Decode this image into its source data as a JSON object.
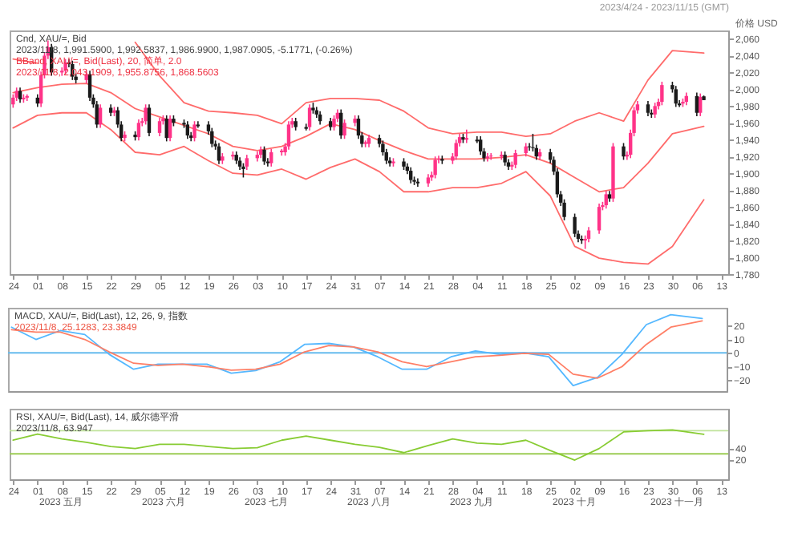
{
  "chart_data": [
    {
      "type": "candlestick",
      "title": "Cnd, XAU/=, Bid",
      "subtitle": "2023/11/8, 1,991.5900, 1,992.5837, 1,986.9900, 1,987.0905, -5.1771, (-0.26%)",
      "xlabel": "2023/4/24 - 2023/11/15 (GMT)",
      "ylabel": "价格 USD",
      "xticks": [
        {
          "value": "2023-04-24",
          "label": "24"
        },
        {
          "value": "2023-05-01",
          "label": "01"
        },
        {
          "value": "2023-05-08",
          "label": "08"
        },
        {
          "value": "2023-05-15",
          "label": "15"
        },
        {
          "value": "2023-05-22",
          "label": "22"
        },
        {
          "value": "2023-05-29",
          "label": "29"
        },
        {
          "value": "2023-06-05",
          "label": "05"
        },
        {
          "value": "2023-06-12",
          "label": "12"
        },
        {
          "value": "2023-06-19",
          "label": "19"
        },
        {
          "value": "2023-06-26",
          "label": "26"
        },
        {
          "value": "2023-07-03",
          "label": "03"
        },
        {
          "value": "2023-07-10",
          "label": "10"
        },
        {
          "value": "2023-07-17",
          "label": "17"
        },
        {
          "value": "2023-07-24",
          "label": "24"
        },
        {
          "value": "2023-07-31",
          "label": "31"
        },
        {
          "value": "2023-08-07",
          "label": "07"
        },
        {
          "value": "2023-08-14",
          "label": "14"
        },
        {
          "value": "2023-08-21",
          "label": "21"
        },
        {
          "value": "2023-08-28",
          "label": "28"
        },
        {
          "value": "2023-09-04",
          "label": "04"
        },
        {
          "value": "2023-09-11",
          "label": "11"
        },
        {
          "value": "2023-09-18",
          "label": "18"
        },
        {
          "value": "2023-09-25",
          "label": "25"
        },
        {
          "value": "2023-10-02",
          "label": "02"
        },
        {
          "value": "2023-10-09",
          "label": "09"
        },
        {
          "value": "2023-10-16",
          "label": "16"
        },
        {
          "value": "2023-10-23",
          "label": "23"
        },
        {
          "value": "2023-10-30",
          "label": "30"
        },
        {
          "value": "2023-11-06",
          "label": "06"
        },
        {
          "value": "2023-11-13",
          "label": "13"
        }
      ],
      "annotations": [
        "BBand, XAU/=, Bid(Last), 20, 简单, 2.0",
        "2023/11/8, 2,043.1909, 1,955.8756, 1,868.5603"
      ],
      "x": [
        "2023-04-24",
        "2023-04-25",
        "2023-04-26",
        "2023-04-27",
        "2023-04-28",
        "2023-05-01",
        "2023-05-02",
        "2023-05-03",
        "2023-05-04",
        "2023-05-05",
        "2023-05-08",
        "2023-05-09",
        "2023-05-10",
        "2023-05-11",
        "2023-05-12",
        "2023-05-15",
        "2023-05-16",
        "2023-05-17",
        "2023-05-18",
        "2023-05-19",
        "2023-05-22",
        "2023-05-23",
        "2023-05-24",
        "2023-05-25",
        "2023-05-26",
        "2023-05-29",
        "2023-05-30",
        "2023-05-31",
        "2023-06-01",
        "2023-06-02",
        "2023-06-05",
        "2023-06-06",
        "2023-06-07",
        "2023-06-08",
        "2023-06-09",
        "2023-06-12",
        "2023-06-13",
        "2023-06-14",
        "2023-06-15",
        "2023-06-16",
        "2023-06-19",
        "2023-06-20",
        "2023-06-21",
        "2023-06-22",
        "2023-06-23",
        "2023-06-26",
        "2023-06-27",
        "2023-06-28",
        "2023-06-29",
        "2023-06-30",
        "2023-07-03",
        "2023-07-04",
        "2023-07-05",
        "2023-07-06",
        "2023-07-07",
        "2023-07-10",
        "2023-07-11",
        "2023-07-12",
        "2023-07-13",
        "2023-07-14",
        "2023-07-17",
        "2023-07-18",
        "2023-07-19",
        "2023-07-20",
        "2023-07-21",
        "2023-07-24",
        "2023-07-25",
        "2023-07-26",
        "2023-07-27",
        "2023-07-28",
        "2023-07-31",
        "2023-08-01",
        "2023-08-02",
        "2023-08-03",
        "2023-08-04",
        "2023-08-07",
        "2023-08-08",
        "2023-08-09",
        "2023-08-10",
        "2023-08-11",
        "2023-08-14",
        "2023-08-15",
        "2023-08-16",
        "2023-08-17",
        "2023-08-18",
        "2023-08-21",
        "2023-08-22",
        "2023-08-23",
        "2023-08-24",
        "2023-08-25",
        "2023-08-28",
        "2023-08-29",
        "2023-08-30",
        "2023-08-31",
        "2023-09-01",
        "2023-09-04",
        "2023-09-05",
        "2023-09-06",
        "2023-09-07",
        "2023-09-08",
        "2023-09-11",
        "2023-09-12",
        "2023-09-13",
        "2023-09-14",
        "2023-09-15",
        "2023-09-18",
        "2023-09-19",
        "2023-09-20",
        "2023-09-21",
        "2023-09-22",
        "2023-09-25",
        "2023-09-26",
        "2023-09-27",
        "2023-09-28",
        "2023-09-29",
        "2023-10-02",
        "2023-10-03",
        "2023-10-04",
        "2023-10-05",
        "2023-10-06",
        "2023-10-09",
        "2023-10-10",
        "2023-10-11",
        "2023-10-12",
        "2023-10-13",
        "2023-10-16",
        "2023-10-17",
        "2023-10-18",
        "2023-10-19",
        "2023-10-20",
        "2023-10-23",
        "2023-10-24",
        "2023-10-25",
        "2023-10-26",
        "2023-10-27",
        "2023-10-30",
        "2023-10-31",
        "2023-11-01",
        "2023-11-02",
        "2023-11-03",
        "2023-11-06",
        "2023-11-07",
        "2023-11-08"
      ],
      "ohlc": [
        [
          1982,
          1994,
          1978,
          1990
        ],
        [
          1990,
          2002,
          1986,
          1998
        ],
        [
          1998,
          2002,
          1984,
          1988
        ],
        [
          1988,
          1994,
          1984,
          1990
        ],
        [
          1990,
          1994,
          1986,
          1992
        ],
        [
          1990,
          1994,
          1979,
          1983
        ],
        [
          1983,
          2021,
          1979,
          2017
        ],
        [
          2017,
          2044,
          2013,
          2040
        ],
        [
          2040,
          2058,
          2036,
          2050
        ],
        [
          2050,
          2054,
          2016,
          2020
        ],
        [
          2020,
          2026,
          2016,
          2022
        ],
        [
          2022,
          2036,
          2018,
          2032
        ],
        [
          2032,
          2036,
          2026,
          2030
        ],
        [
          2030,
          2034,
          2011,
          2015
        ],
        [
          2015,
          2019,
          2007,
          2011
        ],
        [
          2011,
          2022,
          2007,
          2018
        ],
        [
          2018,
          2022,
          1986,
          1990
        ],
        [
          1990,
          1994,
          1978,
          1982
        ],
        [
          1982,
          1986,
          1954,
          1958
        ],
        [
          1958,
          1982,
          1954,
          1978
        ],
        [
          1978,
          1982,
          1968,
          1972
        ],
        [
          1972,
          1979,
          1968,
          1975
        ],
        [
          1975,
          1979,
          1954,
          1958
        ],
        [
          1958,
          1962,
          1938,
          1942
        ],
        [
          1942,
          1950,
          1938,
          1946
        ],
        [
          1946,
          1950,
          1939,
          1943
        ],
        [
          1943,
          1964,
          1939,
          1960
        ],
        [
          1960,
          1966,
          1956,
          1962
        ],
        [
          1962,
          1982,
          1958,
          1978
        ],
        [
          1978,
          1982,
          1944,
          1948
        ],
        [
          1948,
          1966,
          1944,
          1962
        ],
        [
          1962,
          1969,
          1958,
          1965
        ],
        [
          1965,
          1969,
          1938,
          1942
        ],
        [
          1942,
          1969,
          1938,
          1965
        ],
        [
          1965,
          1969,
          1956,
          1960
        ],
        [
          1960,
          1964,
          1954,
          1958
        ],
        [
          1958,
          1962,
          1941,
          1945
        ],
        [
          1945,
          1949,
          1938,
          1942
        ],
        [
          1942,
          1962,
          1938,
          1958
        ],
        [
          1958,
          1962,
          1954,
          1956
        ],
        [
          1958,
          1962,
          1946,
          1950
        ],
        [
          1950,
          1954,
          1931,
          1935
        ],
        [
          1935,
          1939,
          1928,
          1932
        ],
        [
          1932,
          1936,
          1911,
          1915
        ],
        [
          1915,
          1924,
          1911,
          1920
        ],
        [
          1920,
          1926,
          1916,
          1922
        ],
        [
          1922,
          1926,
          1911,
          1915
        ],
        [
          1915,
          1919,
          1904,
          1908
        ],
        [
          1908,
          1912,
          1895,
          1905
        ],
        [
          1908,
          1922,
          1904,
          1918
        ],
        [
          1918,
          1926,
          1914,
          1922
        ],
        [
          1922,
          1932,
          1918,
          1928
        ],
        [
          1928,
          1932,
          1910,
          1914
        ],
        [
          1914,
          1918,
          1908,
          1912
        ],
        [
          1912,
          1929,
          1908,
          1925
        ],
        [
          1925,
          1929,
          1921,
          1927
        ],
        [
          1925,
          1936,
          1921,
          1932
        ],
        [
          1932,
          1962,
          1928,
          1958
        ],
        [
          1958,
          1966,
          1954,
          1962
        ],
        [
          1962,
          1966,
          1951,
          1955
        ],
        [
          1955,
          1959,
          1951,
          1953
        ],
        [
          1955,
          1982,
          1951,
          1978
        ],
        [
          1978,
          1984,
          1971,
          1975
        ],
        [
          1975,
          1979,
          1966,
          1970
        ],
        [
          1970,
          1974,
          1958,
          1962
        ],
        [
          1962,
          1966,
          1951,
          1955
        ],
        [
          1955,
          1969,
          1951,
          1965
        ],
        [
          1965,
          1976,
          1961,
          1972
        ],
        [
          1972,
          1976,
          1941,
          1945
        ],
        [
          1945,
          1964,
          1941,
          1960
        ],
        [
          1960,
          1969,
          1956,
          1965
        ],
        [
          1965,
          1969,
          1941,
          1945
        ],
        [
          1945,
          1949,
          1931,
          1935
        ],
        [
          1935,
          1939,
          1931,
          1937
        ],
        [
          1935,
          1946,
          1931,
          1942
        ],
        [
          1942,
          1946,
          1931,
          1935
        ],
        [
          1935,
          1939,
          1921,
          1925
        ],
        [
          1925,
          1929,
          1911,
          1915
        ],
        [
          1915,
          1919,
          1908,
          1912
        ],
        [
          1912,
          1918,
          1908,
          1914
        ],
        [
          1914,
          1918,
          1904,
          1908
        ],
        [
          1908,
          1912,
          1899,
          1903
        ],
        [
          1903,
          1907,
          1888,
          1892
        ],
        [
          1892,
          1896,
          1886,
          1890
        ],
        [
          1890,
          1894,
          1884,
          1888
        ],
        [
          1888,
          1899,
          1884,
          1895
        ],
        [
          1895,
          1902,
          1891,
          1898
        ],
        [
          1898,
          1920,
          1894,
          1916
        ],
        [
          1916,
          1921,
          1912,
          1917
        ],
        [
          1917,
          1921,
          1911,
          1915
        ],
        [
          1915,
          1924,
          1911,
          1920
        ],
        [
          1920,
          1940,
          1916,
          1936
        ],
        [
          1936,
          1947,
          1932,
          1943
        ],
        [
          1943,
          1947,
          1936,
          1940
        ],
        [
          1940,
          1952,
          1936,
          1942
        ],
        [
          1940,
          1944,
          1936,
          1938
        ],
        [
          1940,
          1944,
          1922,
          1926
        ],
        [
          1926,
          1930,
          1914,
          1918
        ],
        [
          1918,
          1924,
          1914,
          1920
        ],
        [
          1920,
          1924,
          1916,
          1921
        ],
        [
          1920,
          1926,
          1916,
          1922
        ],
        [
          1922,
          1926,
          1909,
          1913
        ],
        [
          1913,
          1917,
          1904,
          1908
        ],
        [
          1908,
          1914,
          1904,
          1910
        ],
        [
          1910,
          1928,
          1906,
          1924
        ],
        [
          1924,
          1936,
          1920,
          1932
        ],
        [
          1932,
          1936,
          1927,
          1931
        ],
        [
          1931,
          1947,
          1926,
          1930
        ],
        [
          1930,
          1934,
          1916,
          1920
        ],
        [
          1920,
          1929,
          1916,
          1925
        ],
        [
          1925,
          1929,
          1912,
          1916
        ],
        [
          1916,
          1920,
          1898,
          1902
        ],
        [
          1902,
          1906,
          1871,
          1875
        ],
        [
          1875,
          1879,
          1861,
          1865
        ],
        [
          1865,
          1869,
          1844,
          1848
        ],
        [
          1848,
          1852,
          1824,
          1828
        ],
        [
          1828,
          1832,
          1818,
          1822
        ],
        [
          1822,
          1826,
          1816,
          1820
        ],
        [
          1820,
          1826,
          1810,
          1822
        ],
        [
          1822,
          1836,
          1818,
          1832
        ],
        [
          1832,
          1864,
          1828,
          1860
        ],
        [
          1860,
          1866,
          1856,
          1862
        ],
        [
          1862,
          1879,
          1858,
          1875
        ],
        [
          1875,
          1879,
          1866,
          1870
        ],
        [
          1870,
          1936,
          1866,
          1932
        ],
        [
          1932,
          1936,
          1916,
          1920
        ],
        [
          1920,
          1926,
          1916,
          1922
        ],
        [
          1922,
          1952,
          1918,
          1948
        ],
        [
          1948,
          1979,
          1944,
          1975
        ],
        [
          1975,
          1986,
          1971,
          1982
        ],
        [
          1982,
          1986,
          1968,
          1972
        ],
        [
          1972,
          1976,
          1966,
          1970
        ],
        [
          1970,
          1984,
          1966,
          1980
        ],
        [
          1980,
          1989,
          1976,
          1985
        ],
        [
          1985,
          2009,
          1981,
          2005
        ],
        [
          2005,
          2009,
          1996,
          2000
        ],
        [
          2000,
          2004,
          1979,
          1983
        ],
        [
          1983,
          1987,
          1979,
          1981
        ],
        [
          1983,
          1989,
          1979,
          1985
        ],
        [
          1985,
          1996,
          1981,
          1992
        ],
        [
          1992,
          1996,
          1968,
          1972
        ],
        [
          1972,
          1995,
          1968,
          1991
        ],
        [
          1991.59,
          1992.5837,
          1986.99,
          1987.0905
        ]
      ],
      "colors": [
        "#ff3388",
        "#ff3388",
        "#1a1a1a",
        "#ff3388",
        "#ff3388",
        "#1a1a1a",
        "#ff3388",
        "#ff3388",
        "#ff3388",
        "#1a1a1a",
        "#ff3388",
        "#ff3388",
        "#1a1a1a",
        "#1a1a1a",
        "#1a1a1a",
        "#ff3388",
        "#1a1a1a",
        "#1a1a1a",
        "#1a1a1a",
        "#ff3388",
        "#1a1a1a",
        "#ff3388",
        "#1a1a1a",
        "#1a1a1a",
        "#ff3388",
        "#1a1a1a",
        "#ff3388",
        "#ff3388",
        "#ff3388",
        "#1a1a1a",
        "#ff3388",
        "#ff3388",
        "#1a1a1a",
        "#ff3388",
        "#1a1a1a",
        "#1a1a1a",
        "#1a1a1a",
        "#1a1a1a",
        "#ff3388",
        "#1a1a1a",
        "#1a1a1a",
        "#1a1a1a",
        "#1a1a1a",
        "#1a1a1a",
        "#ff3388",
        "#ff3388",
        "#1a1a1a",
        "#1a1a1a",
        "#1a1a1a",
        "#ff3388",
        "#ff3388",
        "#ff3388",
        "#1a1a1a",
        "#1a1a1a",
        "#ff3388",
        "#ff3388",
        "#ff3388",
        "#ff3388",
        "#ff3388",
        "#1a1a1a",
        "#1a1a1a",
        "#ff3388",
        "#1a1a1a",
        "#1a1a1a",
        "#1a1a1a",
        "#1a1a1a",
        "#ff3388",
        "#ff3388",
        "#1a1a1a",
        "#ff3388",
        "#ff3388",
        "#1a1a1a",
        "#1a1a1a",
        "#ff3388",
        "#ff3388",
        "#1a1a1a",
        "#1a1a1a",
        "#1a1a1a",
        "#1a1a1a",
        "#ff3388",
        "#1a1a1a",
        "#1a1a1a",
        "#1a1a1a",
        "#1a1a1a",
        "#1a1a1a",
        "#ff3388",
        "#ff3388",
        "#ff3388",
        "#ff3388",
        "#1a1a1a",
        "#ff3388",
        "#ff3388",
        "#ff3388",
        "#1a1a1a",
        "#ff3388",
        "#1a1a1a",
        "#1a1a1a",
        "#1a1a1a",
        "#ff3388",
        "#ff3388",
        "#ff3388",
        "#1a1a1a",
        "#1a1a1a",
        "#ff3388",
        "#ff3388",
        "#ff3388",
        "#1a1a1a",
        "#1a1a1a",
        "#1a1a1a",
        "#ff3388",
        "#1a1a1a",
        "#1a1a1a",
        "#1a1a1a",
        "#1a1a1a",
        "#1a1a1a",
        "#1a1a1a",
        "#1a1a1a",
        "#1a1a1a",
        "#ff3388",
        "#ff3388",
        "#ff3388",
        "#ff3388",
        "#ff3388",
        "#1a1a1a",
        "#ff3388",
        "#1a1a1a",
        "#ff3388",
        "#ff3388",
        "#ff3388",
        "#ff3388",
        "#1a1a1a",
        "#1a1a1a",
        "#ff3388",
        "#ff3388",
        "#ff3388",
        "#1a1a1a",
        "#1a1a1a",
        "#1a1a1a",
        "#ff3388",
        "#ff3388",
        "#1a1a1a",
        "#ff3388",
        "#1a1a1a"
      ],
      "series": [
        {
          "type": "line",
          "color": "#ff6b6b",
          "x": [
            "2023-04-24",
            "2023-05-01",
            "2023-05-08",
            "2023-05-15",
            "2023-05-22",
            "2023-05-29",
            "2023-06-05",
            "2023-06-12",
            "2023-06-19",
            "2023-06-26",
            "2023-07-03",
            "2023-07-10",
            "2023-07-17",
            "2023-07-24",
            "2023-07-31",
            "2023-08-07",
            "2023-08-14",
            "2023-08-21",
            "2023-08-28",
            "2023-09-04",
            "2023-09-11",
            "2023-09-18",
            "2023-09-25",
            "2023-10-02",
            "2023-10-09",
            "2023-10-16",
            "2023-10-23",
            "2023-10-30",
            "2023-11-08"
          ],
          "values": [
            2036,
            2031,
            null,
            null,
            null,
            2056,
            2016,
            1984,
            1974,
            1972,
            1969,
            1959,
            1984,
            1989,
            1989,
            1987,
            1974,
            1954,
            1947,
            1949,
            1949,
            1944,
            1947,
            1962,
            1972,
            1962,
            2011,
            2046,
            2043.1909
          ]
        },
        {
          "type": "line",
          "color": "#ff6b6b",
          "x": [
            "2023-04-24",
            "2023-05-01",
            "2023-05-08",
            "2023-05-15",
            "2023-05-22",
            "2023-05-29",
            "2023-06-05",
            "2023-06-12",
            "2023-06-19",
            "2023-06-26",
            "2023-07-03",
            "2023-07-10",
            "2023-07-17",
            "2023-07-24",
            "2023-07-31",
            "2023-08-07",
            "2023-08-14",
            "2023-08-21",
            "2023-08-28",
            "2023-09-04",
            "2023-09-11",
            "2023-09-18",
            "2023-09-25",
            "2023-10-02",
            "2023-10-09",
            "2023-10-16",
            "2023-10-23",
            "2023-10-30",
            "2023-11-08"
          ],
          "values": [
            1996,
            2002,
            2006,
            2007,
            1996,
            1977,
            1967,
            1957,
            1947,
            1932,
            1927,
            1932,
            1944,
            1959,
            1952,
            1939,
            1927,
            1917,
            1917,
            1917,
            1919,
            1922,
            1912,
            1895,
            1878,
            1883,
            1912,
            1947,
            1955.8756
          ]
        },
        {
          "type": "line",
          "color": "#ff6b6b",
          "x": [
            "2023-04-24",
            "2023-05-01",
            "2023-05-08",
            "2023-05-15",
            "2023-05-22",
            "2023-05-29",
            "2023-06-05",
            "2023-06-12",
            "2023-06-19",
            "2023-06-26",
            "2023-07-03",
            "2023-07-10",
            "2023-07-17",
            "2023-07-24",
            "2023-07-31",
            "2023-08-07",
            "2023-08-14",
            "2023-08-21",
            "2023-08-28",
            "2023-09-04",
            "2023-09-11",
            "2023-09-18",
            "2023-09-25",
            "2023-10-02",
            "2023-10-09",
            "2023-10-16",
            "2023-10-23",
            "2023-10-30",
            "2023-11-08"
          ],
          "values": [
            1954,
            1969,
            1972,
            1972,
            1952,
            1925,
            1922,
            1932,
            1915,
            1900,
            1898,
            1905,
            1893,
            1907,
            1917,
            1902,
            1878,
            1878,
            1883,
            1883,
            1888,
            1902,
            1873,
            1813,
            1799,
            1794,
            1792,
            1813,
            1868.5603
          ]
        }
      ],
      "xlim": [
        "2023-04-23",
        "2023-11-15"
      ],
      "ylim": [
        1780,
        2070
      ],
      "yticks": [
        {
          "value": 1780,
          "label": "1,780"
        },
        {
          "value": 1800,
          "label": "1,800"
        },
        {
          "value": 1820,
          "label": "1,820"
        },
        {
          "value": 1840,
          "label": "1,840"
        },
        {
          "value": 1860,
          "label": "1,860"
        },
        {
          "value": 1880,
          "label": "1,880"
        },
        {
          "value": 1900,
          "label": "1,900"
        },
        {
          "value": 1920,
          "label": "1,920"
        },
        {
          "value": 1940,
          "label": "1,940"
        },
        {
          "value": 1960,
          "label": "1,960"
        },
        {
          "value": 1980,
          "label": "1,980"
        },
        {
          "value": 2000,
          "label": "2,000"
        },
        {
          "value": 2020,
          "label": "2,020"
        },
        {
          "value": 2040,
          "label": "2,040"
        },
        {
          "value": 2060,
          "label": "2,060"
        }
      ]
    },
    {
      "type": "line",
      "tick_labels": "y",
      "title": "MACD, XAU/=, Bid(Last), 12, 26, 9, 指数",
      "subtitle": "2023/11/8, 25.1283, 23.3849",
      "x": [
        "2023-04-24",
        "2023-05-01",
        "2023-05-08",
        "2023-05-15",
        "2023-05-22",
        "2023-05-29",
        "2023-06-05",
        "2023-06-12",
        "2023-06-19",
        "2023-06-26",
        "2023-07-03",
        "2023-07-10",
        "2023-07-17",
        "2023-07-24",
        "2023-07-31",
        "2023-08-07",
        "2023-08-14",
        "2023-08-21",
        "2023-08-28",
        "2023-09-04",
        "2023-09-11",
        "2023-09-18",
        "2023-09-25",
        "2023-10-02",
        "2023-10-09",
        "2023-10-16",
        "2023-10-23",
        "2023-10-30",
        "2023-11-08"
      ],
      "series": [
        {
          "color": "#55b8ff",
          "values": [
            18.8,
            9.8,
            16.3,
            13.4,
            -1.1,
            -12,
            -8.3,
            -8.3,
            -8.3,
            -14.9,
            -13,
            -6.5,
            6.2,
            6.9,
            4.3,
            -2.9,
            -12,
            -12,
            -2.9,
            1.4,
            -1.1,
            0,
            -2.9,
            -24,
            -18,
            -1.1,
            20.7,
            27.9,
            25.1283
          ]
        },
        {
          "color": "#ff7f66",
          "values": [
            17,
            15.2,
            15.2,
            9.8,
            0.7,
            -7.6,
            -9.1,
            -8.3,
            -10.1,
            -12.7,
            -12,
            -8.3,
            0.7,
            5.4,
            4.3,
            0.7,
            -6.5,
            -10.1,
            -6.5,
            -2.9,
            -1.8,
            -0.4,
            -1.1,
            -15.6,
            -18.5,
            -10.1,
            6.2,
            18.8,
            23.3849
          ]
        }
      ],
      "ref_lines": [
        {
          "axis": "y",
          "value": 0,
          "color": "#66bbee"
        }
      ],
      "xlim": [
        "2023-04-23",
        "2023-11-15"
      ],
      "ylim": [
        -28,
        33
      ],
      "yticks": [
        -20,
        -10,
        0,
        10,
        20
      ]
    },
    {
      "type": "line",
      "title": "RSI, XAU/=, Bid(Last), 14, 威尔德平滑",
      "subtitle": "2023/11/8, 63.947",
      "annotations": [
        "2023 五月",
        "2023 六月",
        "2023 七月",
        "2023 八月",
        "2023 九月",
        "2023 十月",
        "2023 十一月"
      ],
      "x": [
        "2023-04-24",
        "2023-05-01",
        "2023-05-08",
        "2023-05-15",
        "2023-05-22",
        "2023-05-29",
        "2023-06-05",
        "2023-06-12",
        "2023-06-19",
        "2023-06-26",
        "2023-07-03",
        "2023-07-10",
        "2023-07-17",
        "2023-07-24",
        "2023-07-31",
        "2023-08-07",
        "2023-08-14",
        "2023-08-21",
        "2023-08-28",
        "2023-09-04",
        "2023-09-11",
        "2023-09-18",
        "2023-09-25",
        "2023-10-02",
        "2023-10-09",
        "2023-10-16",
        "2023-10-23",
        "2023-10-30",
        "2023-11-08"
      ],
      "series": [
        {
          "color": "#88cc33",
          "values": [
            53.6,
            64.3,
            55.7,
            50,
            42.8,
            39.2,
            46.4,
            46.4,
            42.8,
            39.2,
            40.7,
            53.6,
            60.8,
            53.6,
            46.4,
            41.4,
            32.1,
            44.3,
            55.7,
            48.6,
            46.4,
            53.6,
            35.7,
            19.2,
            39.2,
            67.9,
            70,
            71.5,
            63.947
          ]
        }
      ],
      "ref_lines": [
        {
          "axis": "y",
          "value": 70,
          "color": "#bfe39a"
        },
        {
          "axis": "y",
          "value": 30,
          "color": "#9ccc55"
        }
      ],
      "xlim": [
        "2023-04-23",
        "2023-11-15"
      ],
      "ylim": [
        -14,
        108
      ],
      "yticks": [
        20,
        40
      ],
      "xticks": [
        {
          "value": "2023-04-24",
          "label": "24"
        },
        {
          "value": "2023-05-01",
          "label": "01"
        },
        {
          "value": "2023-05-08",
          "label": "08"
        },
        {
          "value": "2023-05-15",
          "label": "15"
        },
        {
          "value": "2023-05-22",
          "label": "22"
        },
        {
          "value": "2023-05-29",
          "label": "29"
        },
        {
          "value": "2023-06-05",
          "label": "05"
        },
        {
          "value": "2023-06-12",
          "label": "12"
        },
        {
          "value": "2023-06-19",
          "label": "19"
        },
        {
          "value": "2023-06-26",
          "label": "26"
        },
        {
          "value": "2023-07-03",
          "label": "03"
        },
        {
          "value": "2023-07-10",
          "label": "10"
        },
        {
          "value": "2023-07-17",
          "label": "17"
        },
        {
          "value": "2023-07-24",
          "label": "24"
        },
        {
          "value": "2023-07-31",
          "label": "31"
        },
        {
          "value": "2023-08-07",
          "label": "07"
        },
        {
          "value": "2023-08-14",
          "label": "14"
        },
        {
          "value": "2023-08-21",
          "label": "21"
        },
        {
          "value": "2023-08-28",
          "label": "28"
        },
        {
          "value": "2023-09-04",
          "label": "04"
        },
        {
          "value": "2023-09-11",
          "label": "11"
        },
        {
          "value": "2023-09-18",
          "label": "18"
        },
        {
          "value": "2023-09-25",
          "label": "25"
        },
        {
          "value": "2023-10-02",
          "label": "02"
        },
        {
          "value": "2023-10-09",
          "label": "09"
        },
        {
          "value": "2023-10-16",
          "label": "16"
        },
        {
          "value": "2023-10-23",
          "label": "23"
        },
        {
          "value": "2023-10-30",
          "label": "30"
        },
        {
          "value": "2023-11-06",
          "label": "06"
        },
        {
          "value": "2023-11-13",
          "label": "13"
        }
      ]
    }
  ]
}
